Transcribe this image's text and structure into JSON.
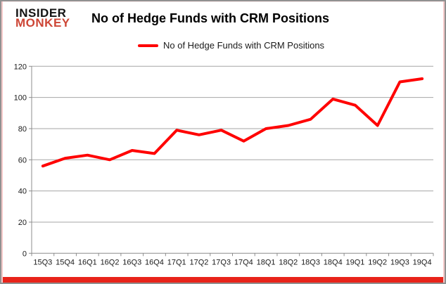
{
  "header": {
    "logo_line1": "INSIDER",
    "logo_line2": "MONKEY",
    "title": "No of Hedge Funds with CRM Positions"
  },
  "legend": {
    "label": "No of Hedge Funds with CRM Positions"
  },
  "colors": {
    "series_line": "#ff0000",
    "logo_black": "#121212",
    "logo_red": "#cd4636",
    "gridline": "#a6a6a6",
    "axis": "#8c8c8c",
    "tick_label": "#1a1a1a",
    "frame_border": "#919191",
    "frame_glow_pink": "#f6c9c9",
    "bottom_bar_red": "#e8231a"
  },
  "chart_data": {
    "type": "line",
    "title": "No of Hedge Funds with CRM Positions",
    "categories": [
      "15Q3",
      "15Q4",
      "16Q1",
      "16Q2",
      "16Q3",
      "16Q4",
      "17Q1",
      "17Q2",
      "17Q3",
      "17Q4",
      "18Q1",
      "18Q2",
      "18Q3",
      "18Q4",
      "19Q1",
      "19Q2",
      "19Q3",
      "19Q4"
    ],
    "values": [
      56,
      61,
      63,
      60,
      66,
      64,
      79,
      76,
      79,
      72,
      80,
      82,
      86,
      99,
      95,
      82,
      110,
      112
    ],
    "xlabel": "",
    "ylabel": "",
    "ylim": [
      0,
      120
    ],
    "yticks": [
      0,
      20,
      40,
      60,
      80,
      100,
      120
    ],
    "grid": true,
    "legend_position": "top-center",
    "line_color": "#ff0000"
  }
}
